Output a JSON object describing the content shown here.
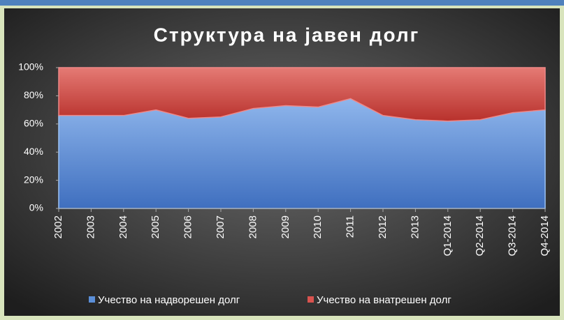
{
  "chart_data": {
    "type": "stacked_area",
    "title": "Структура  на  јавен  долг",
    "categories": [
      "2002",
      "2003",
      "2004",
      "2005",
      "2006",
      "2007",
      "2008",
      "2009",
      "2010",
      "2011",
      "2012",
      "2013",
      "Q1-2014",
      "Q2-2014",
      "Q3-2014",
      "Q4-2014"
    ],
    "series": [
      {
        "name": "Учество на надворешен долг",
        "color": "#5b8fd8",
        "values": [
          66,
          66,
          66,
          70,
          64,
          65,
          71,
          73,
          72,
          78,
          66,
          63,
          62,
          63,
          68,
          70
        ]
      },
      {
        "name": "Учество на внатрешен долг",
        "color": "#d9534f",
        "values": [
          34,
          34,
          34,
          30,
          36,
          35,
          29,
          27,
          28,
          22,
          34,
          37,
          38,
          37,
          32,
          30
        ]
      }
    ],
    "ylim": [
      0,
      100
    ],
    "yticks": [
      {
        "value": 0,
        "label": "0%"
      },
      {
        "value": 20,
        "label": "20%"
      },
      {
        "value": 40,
        "label": "40%"
      },
      {
        "value": 60,
        "label": "60%"
      },
      {
        "value": 80,
        "label": "80%"
      },
      {
        "value": 100,
        "label": "100%"
      }
    ],
    "legend": "bottom"
  }
}
